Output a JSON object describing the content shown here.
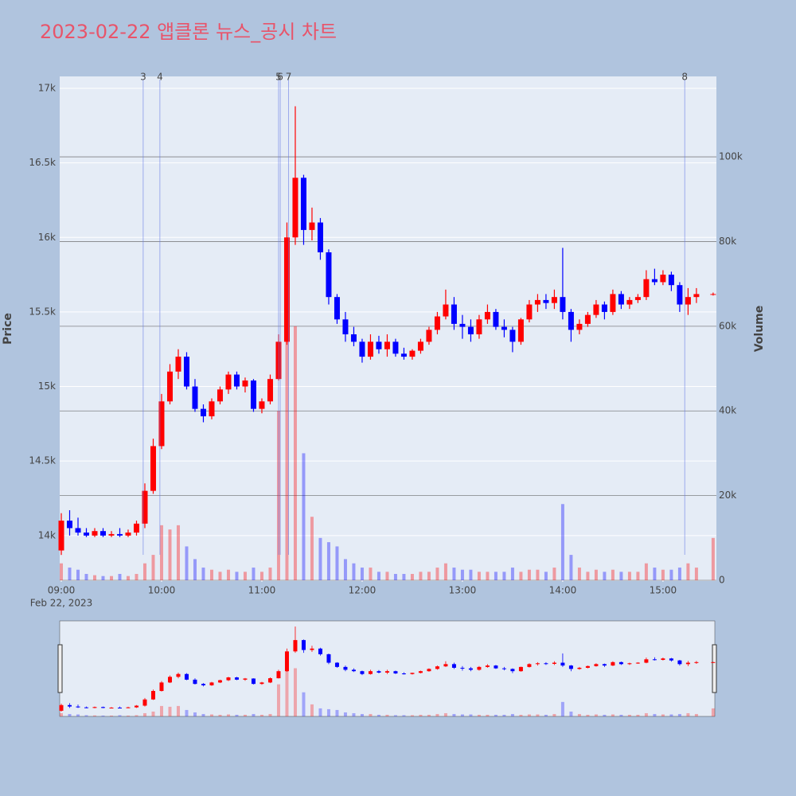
{
  "chart_data": {
    "type": "candlestick",
    "title": "2023-02-22 앱클론 뉴스_공시 차트",
    "y_title": "Price",
    "y2_title": "Volume",
    "date_label": "Feb 22, 2023",
    "increasing_color": "#ff0000",
    "decreasing_color": "#0000ff",
    "x": [
      "09:00",
      "09:05",
      "09:10",
      "09:15",
      "09:20",
      "09:25",
      "09:30",
      "09:35",
      "09:40",
      "09:45",
      "09:50",
      "09:55",
      "10:00",
      "10:05",
      "10:10",
      "10:15",
      "10:20",
      "10:25",
      "10:30",
      "10:35",
      "10:40",
      "10:45",
      "10:50",
      "10:55",
      "11:00",
      "11:05",
      "11:10",
      "11:15",
      "11:20",
      "11:25",
      "11:30",
      "11:35",
      "11:40",
      "11:45",
      "11:50",
      "11:55",
      "12:00",
      "12:05",
      "12:10",
      "12:15",
      "12:20",
      "12:25",
      "12:30",
      "12:35",
      "12:40",
      "12:45",
      "12:50",
      "12:55",
      "13:00",
      "13:05",
      "13:10",
      "13:15",
      "13:20",
      "13:25",
      "13:30",
      "13:35",
      "13:40",
      "13:45",
      "13:50",
      "13:55",
      "14:00",
      "14:05",
      "14:10",
      "14:15",
      "14:20",
      "14:25",
      "14:30",
      "14:35",
      "14:40",
      "14:45",
      "14:50",
      "14:55",
      "15:00",
      "15:05",
      "15:10",
      "15:15",
      "15:20",
      "15:30"
    ],
    "open": [
      13900,
      14100,
      14050,
      14020,
      14000,
      14030,
      14000,
      14010,
      14000,
      14020,
      14080,
      14300,
      14600,
      14900,
      15100,
      15200,
      15000,
      14850,
      14800,
      14900,
      14980,
      15080,
      15000,
      15040,
      14850,
      14900,
      15050,
      15300,
      16000,
      16400,
      16050,
      16100,
      15900,
      15600,
      15450,
      15350,
      15300,
      15200,
      15300,
      15250,
      15300,
      15220,
      15200,
      15240,
      15300,
      15380,
      15470,
      15550,
      15420,
      15400,
      15350,
      15450,
      15500,
      15400,
      15380,
      15300,
      15450,
      15550,
      15580,
      15560,
      15600,
      15500,
      15380,
      15420,
      15480,
      15550,
      15500,
      15620,
      15550,
      15580,
      15600,
      15720,
      15700,
      15750,
      15680,
      15550,
      15600,
      15620
    ],
    "high": [
      14150,
      14170,
      14120,
      14050,
      14050,
      14050,
      14030,
      14050,
      14040,
      14100,
      14350,
      14650,
      14950,
      15150,
      15250,
      15230,
      15050,
      14880,
      14920,
      15000,
      15100,
      15100,
      15060,
      15050,
      14920,
      15080,
      15350,
      16100,
      16880,
      16420,
      16200,
      16130,
      15920,
      15620,
      15500,
      15400,
      15320,
      15350,
      15340,
      15350,
      15320,
      15260,
      15250,
      15320,
      15400,
      15500,
      15650,
      15600,
      15480,
      15450,
      15480,
      15550,
      15520,
      15450,
      15400,
      15460,
      15580,
      15620,
      15620,
      15650,
      15930,
      15520,
      15450,
      15500,
      15580,
      15570,
      15650,
      15640,
      15600,
      15620,
      15780,
      15790,
      15780,
      15770,
      15700,
      15660,
      15660,
      15630
    ],
    "low": [
      13870,
      14000,
      14000,
      13990,
      13990,
      13990,
      13990,
      13990,
      13990,
      14000,
      14050,
      14280,
      14580,
      14880,
      15050,
      14980,
      14830,
      14760,
      14780,
      14880,
      14950,
      14980,
      14960,
      14830,
      14820,
      14880,
      15040,
      15280,
      15950,
      15950,
      15980,
      15850,
      15550,
      15420,
      15300,
      15270,
      15160,
      15180,
      15220,
      15200,
      15200,
      15180,
      15180,
      15220,
      15280,
      15350,
      15450,
      15380,
      15320,
      15300,
      15320,
      15420,
      15380,
      15330,
      15230,
      15280,
      15430,
      15500,
      15520,
      15520,
      15450,
      15300,
      15350,
      15400,
      15460,
      15450,
      15480,
      15520,
      15520,
      15560,
      15580,
      15680,
      15680,
      15640,
      15500,
      15480,
      15560,
      15610
    ],
    "close": [
      14100,
      14050,
      14020,
      14000,
      14030,
      14000,
      14010,
      14000,
      14020,
      14080,
      14300,
      14600,
      14900,
      15100,
      15200,
      15000,
      14850,
      14800,
      14900,
      14980,
      15080,
      15000,
      15040,
      14850,
      14900,
      15050,
      15300,
      16000,
      16400,
      16050,
      16100,
      15900,
      15600,
      15450,
      15350,
      15300,
      15200,
      15300,
      15250,
      15300,
      15220,
      15200,
      15240,
      15300,
      15380,
      15470,
      15550,
      15420,
      15400,
      15350,
      15450,
      15500,
      15400,
      15380,
      15300,
      15450,
      15550,
      15580,
      15560,
      15600,
      15500,
      15380,
      15420,
      15480,
      15550,
      15500,
      15620,
      15550,
      15580,
      15600,
      15720,
      15700,
      15750,
      15680,
      15550,
      15600,
      15620,
      15620
    ],
    "volume": [
      4000,
      3000,
      2500,
      1500,
      1200,
      1000,
      1000,
      1500,
      1000,
      1500,
      4000,
      6000,
      13000,
      12000,
      13000,
      8000,
      5000,
      3000,
      2500,
      2000,
      2500,
      2000,
      2000,
      3000,
      2000,
      3000,
      40000,
      70000,
      60000,
      30000,
      15000,
      10000,
      9000,
      8000,
      5000,
      4000,
      3000,
      3000,
      2000,
      2000,
      1500,
      1500,
      1500,
      2000,
      2000,
      3000,
      4000,
      3000,
      2500,
      2500,
      2000,
      2000,
      2000,
      2000,
      3000,
      2000,
      2500,
      2500,
      2000,
      3000,
      18000,
      6000,
      3000,
      2000,
      2500,
      2000,
      2500,
      2000,
      2000,
      2000,
      4000,
      3000,
      2500,
      2500,
      3000,
      4000,
      3000,
      10000
    ],
    "xlim": [
      "09:00",
      "15:31"
    ],
    "xticks": [
      "09:00",
      "10:00",
      "11:00",
      "12:00",
      "13:00",
      "14:00",
      "15:00"
    ],
    "ylim": [
      13700,
      17080
    ],
    "yticks": [
      {
        "value": 14000,
        "label": "14k"
      },
      {
        "value": 14500,
        "label": "14.5k"
      },
      {
        "value": 15000,
        "label": "15k"
      },
      {
        "value": 15500,
        "label": "15.5k"
      },
      {
        "value": 16000,
        "label": "16k"
      },
      {
        "value": 16500,
        "label": "16.5k"
      },
      {
        "value": 17000,
        "label": "17k"
      }
    ],
    "y2lim": [
      0,
      119000
    ],
    "y2ticks": [
      0,
      {
        "value": 20000,
        "label": "20k"
      },
      {
        "value": 40000,
        "label": "40k"
      },
      {
        "value": 60000,
        "label": "60k"
      },
      {
        "value": 80000,
        "label": "80k"
      },
      {
        "value": 100000,
        "label": "100k"
      }
    ],
    "news": [
      {
        "label": "3",
        "x": "09:49"
      },
      {
        "label": "4",
        "x": "09:59"
      },
      {
        "label": "5",
        "x": "11:10"
      },
      {
        "label": "6",
        "x": "11:11"
      },
      {
        "label": "7",
        "x": "11:16"
      },
      {
        "label": "8",
        "x": "15:13"
      }
    ]
  }
}
